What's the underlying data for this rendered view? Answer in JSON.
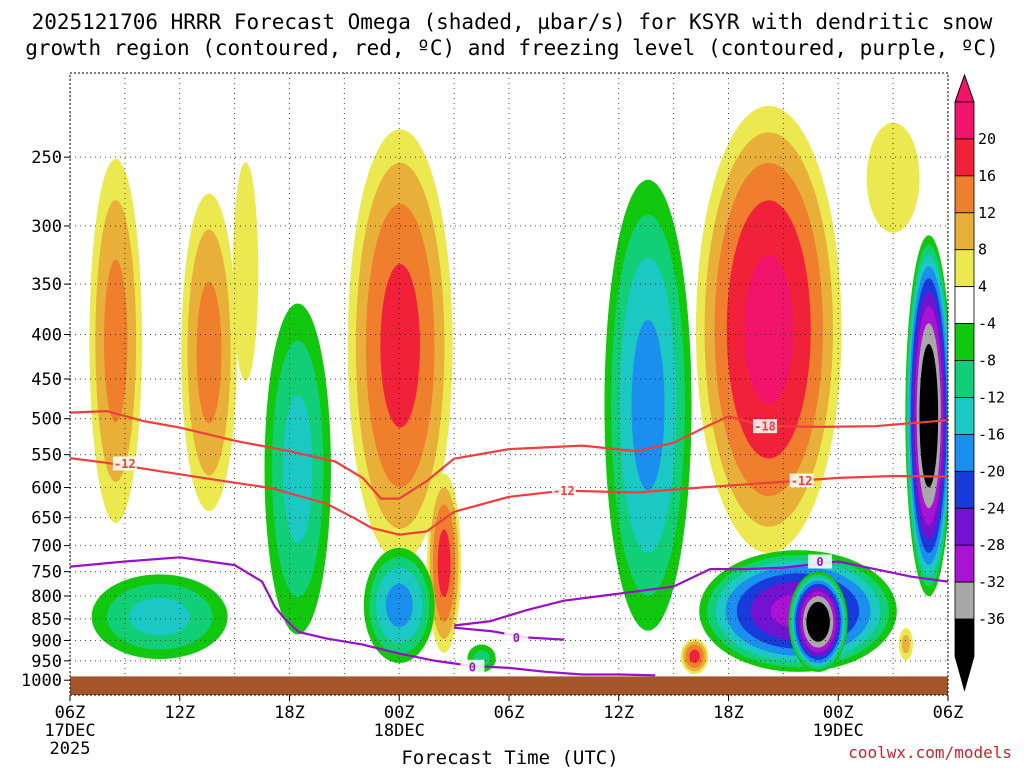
{
  "chart_data": {
    "type": "contour",
    "title_line1": "2025121706 HRRR Forecast Omega (shaded, µbar/s) for KSYR with dendritic snow",
    "title_line2": "growth region (contoured, red, ºC) and freezing level (contoured, purple, ºC)",
    "xlabel": "Forecast Time (UTC)",
    "ylabel": "",
    "y_axis": {
      "scale": "log",
      "range": [
        200,
        1040
      ],
      "ticks": [
        250,
        300,
        350,
        400,
        450,
        500,
        550,
        600,
        650,
        700,
        750,
        800,
        850,
        900,
        950,
        1000
      ]
    },
    "x_axis": {
      "range_hours": [
        0,
        48
      ],
      "ticks": [
        {
          "hour": 0,
          "label": "06Z",
          "date": "17DEC",
          "year": "2025"
        },
        {
          "hour": 6,
          "label": "12Z",
          "date": "",
          "year": ""
        },
        {
          "hour": 12,
          "label": "18Z",
          "date": "",
          "year": ""
        },
        {
          "hour": 18,
          "label": "00Z",
          "date": "18DEC",
          "year": ""
        },
        {
          "hour": 24,
          "label": "06Z",
          "date": "",
          "year": ""
        },
        {
          "hour": 30,
          "label": "12Z",
          "date": "",
          "year": ""
        },
        {
          "hour": 36,
          "label": "18Z",
          "date": "",
          "year": ""
        },
        {
          "hour": 42,
          "label": "00Z",
          "date": "19DEC",
          "year": ""
        },
        {
          "hour": 48,
          "label": "06Z",
          "date": "",
          "year": ""
        }
      ]
    },
    "colorbar": {
      "labels": [
        "20",
        "16",
        "12",
        "8",
        "4",
        "-4",
        "-8",
        "-12",
        "-16",
        "-20",
        "-24",
        "-28",
        "-32",
        "-36"
      ],
      "colors": [
        "#f2136a",
        "#f2213a",
        "#ef7f2c",
        "#e8b039",
        "#ece84f",
        "#ffffff",
        "#12c80e",
        "#11cf76",
        "#1bc8c3",
        "#1a8ff0",
        "#1a3bdc",
        "#7312d0",
        "#aa12d4",
        "#a8a8a8",
        "#000000"
      ]
    },
    "omega_blobs": [
      {
        "name": "morning-ascent",
        "t0": 0.8,
        "t1": 4.2,
        "p_top": 230,
        "p_bot": 720,
        "peak": 12
      },
      {
        "name": "midday-ascent",
        "t0": 5.8,
        "t1": 9.4,
        "p_top": 255,
        "p_bot": 690,
        "peak": 12
      },
      {
        "name": "afternoon-ascent",
        "t0": 8.4,
        "t1": 10.8,
        "p_top": 205,
        "p_bot": 560,
        "peak": 4
      },
      {
        "name": "overnight-ascent",
        "t0": 14.8,
        "t1": 21.3,
        "p_top": 215,
        "p_bot": 790,
        "peak": 16
      },
      {
        "name": "snow-band-core",
        "t0": 19.4,
        "t1": 21.5,
        "p_top": 560,
        "p_bot": 960,
        "peak": 16
      },
      {
        "name": "main-ascent",
        "t0": 33.8,
        "t1": 42.6,
        "p_top": 205,
        "p_bot": 760,
        "peak": 20
      },
      {
        "name": "late-ascent",
        "t0": 42.5,
        "t1": 47.5,
        "p_top": 205,
        "p_bot": 340,
        "peak": 4
      },
      {
        "name": "low-level-ascent",
        "t0": 33.3,
        "t1": 35.0,
        "p_top": 890,
        "p_bot": 990,
        "peak": 16
      },
      {
        "name": "pbl-ascent",
        "t0": 45.2,
        "t1": 46.2,
        "p_top": 860,
        "p_bot": 960,
        "peak": 8
      },
      {
        "name": "low-sinking",
        "t0": 0.5,
        "t1": 9.3,
        "p_top": 740,
        "p_bot": 965,
        "peak": -12
      },
      {
        "name": "descent-a",
        "t0": 10.3,
        "t1": 14.6,
        "p_top": 340,
        "p_bot": 960,
        "peak": -12
      },
      {
        "name": "descent-b",
        "t0": 15.8,
        "t1": 20.2,
        "p_top": 690,
        "p_bot": 975,
        "peak": -16
      },
      {
        "name": "descent-c",
        "t0": 21.5,
        "t1": 23.5,
        "p_top": 900,
        "p_bot": 990,
        "peak": -8
      },
      {
        "name": "descent-d",
        "t0": 28.9,
        "t1": 34.3,
        "p_top": 245,
        "p_bot": 950,
        "peak": -16
      },
      {
        "name": "descent-e",
        "t0": 34.0,
        "t1": 45.6,
        "p_top": 700,
        "p_bot": 990,
        "peak": -28
      },
      {
        "name": "deep-subsidence",
        "t0": 39.2,
        "t1": 42.6,
        "p_top": 745,
        "p_bot": 985,
        "peak": -40
      },
      {
        "name": "late-subsidence",
        "t0": 45.6,
        "t1": 48.3,
        "p_top": 300,
        "p_bot": 820,
        "peak": -40
      }
    ],
    "contours": [
      {
        "name": "dgz-warm-edge",
        "label": "-12",
        "color": "#ee3e3e",
        "points": [
          [
            0,
            555
          ],
          [
            2,
            562
          ],
          [
            5,
            575
          ],
          [
            8,
            588
          ],
          [
            11,
            601
          ],
          [
            14,
            626
          ],
          [
            15.5,
            650
          ],
          [
            16.5,
            668
          ],
          [
            18,
            680
          ],
          [
            19.5,
            674
          ],
          [
            21,
            640
          ],
          [
            24,
            615
          ],
          [
            27,
            605
          ],
          [
            31,
            608
          ],
          [
            34.5,
            600
          ],
          [
            37,
            595
          ],
          [
            39.5,
            590
          ],
          [
            42,
            585
          ],
          [
            45,
            582
          ],
          [
            48,
            583
          ]
        ],
        "label_at": [
          [
            3,
            563
          ],
          [
            27,
            605
          ],
          [
            40,
            589
          ]
        ]
      },
      {
        "name": "dgz-cold-edge",
        "label": "-18",
        "color": "#ee3e3e",
        "points": [
          [
            0,
            492
          ],
          [
            2,
            490
          ],
          [
            4,
            503
          ],
          [
            6,
            512
          ],
          [
            9,
            530
          ],
          [
            12,
            545
          ],
          [
            14.5,
            560
          ],
          [
            16,
            585
          ],
          [
            17,
            618
          ],
          [
            18,
            618
          ],
          [
            19.5,
            590
          ],
          [
            21,
            556
          ],
          [
            24,
            542
          ],
          [
            28,
            537
          ],
          [
            31,
            545
          ],
          [
            33,
            533
          ],
          [
            35,
            508
          ],
          [
            36,
            497
          ],
          [
            38,
            510
          ],
          [
            41,
            511
          ],
          [
            44,
            510
          ],
          [
            48,
            502
          ]
        ],
        "label_at": [
          [
            38,
            510
          ]
        ]
      },
      {
        "name": "freezing-level",
        "label": "0",
        "color": "#9a10c8",
        "points": [
          [
            0,
            740
          ],
          [
            3,
            730
          ],
          [
            6,
            722
          ],
          [
            9,
            737
          ],
          [
            10.5,
            770
          ],
          [
            11.2,
            823
          ],
          [
            11.7,
            848
          ],
          [
            12.5,
            880
          ],
          [
            14,
            895
          ],
          [
            16,
            910
          ],
          [
            18,
            932
          ],
          [
            20,
            950
          ],
          [
            22,
            963
          ],
          [
            24,
            968
          ],
          [
            26,
            978
          ],
          [
            28,
            985
          ],
          [
            30,
            985
          ],
          [
            32,
            987
          ]
        ],
        "label_at": [
          [
            22,
            965
          ]
        ]
      },
      {
        "name": "freezing-level-upper",
        "label": "0",
        "color": "#9a10c8",
        "points": [
          [
            21,
            865
          ],
          [
            23,
            855
          ],
          [
            25,
            830
          ],
          [
            27,
            810
          ],
          [
            29,
            800
          ],
          [
            31,
            790
          ],
          [
            33,
            780
          ],
          [
            35,
            745
          ],
          [
            37,
            745
          ],
          [
            39,
            742
          ],
          [
            42,
            730
          ],
          [
            44,
            745
          ],
          [
            46,
            760
          ],
          [
            48,
            770
          ]
        ],
        "label_at": [
          [
            41,
            730
          ]
        ]
      },
      {
        "name": "freezing-level-lower",
        "label": "0",
        "color": "#9a10c8",
        "points": [
          [
            21,
            870
          ],
          [
            23,
            878
          ],
          [
            25,
            893
          ],
          [
            27,
            898
          ]
        ],
        "label_at": [
          [
            24.4,
            893
          ]
        ]
      }
    ],
    "terrain_top_hpa": 990,
    "terrain_color": "#a5552a"
  },
  "credit": "coolwx.com/models"
}
